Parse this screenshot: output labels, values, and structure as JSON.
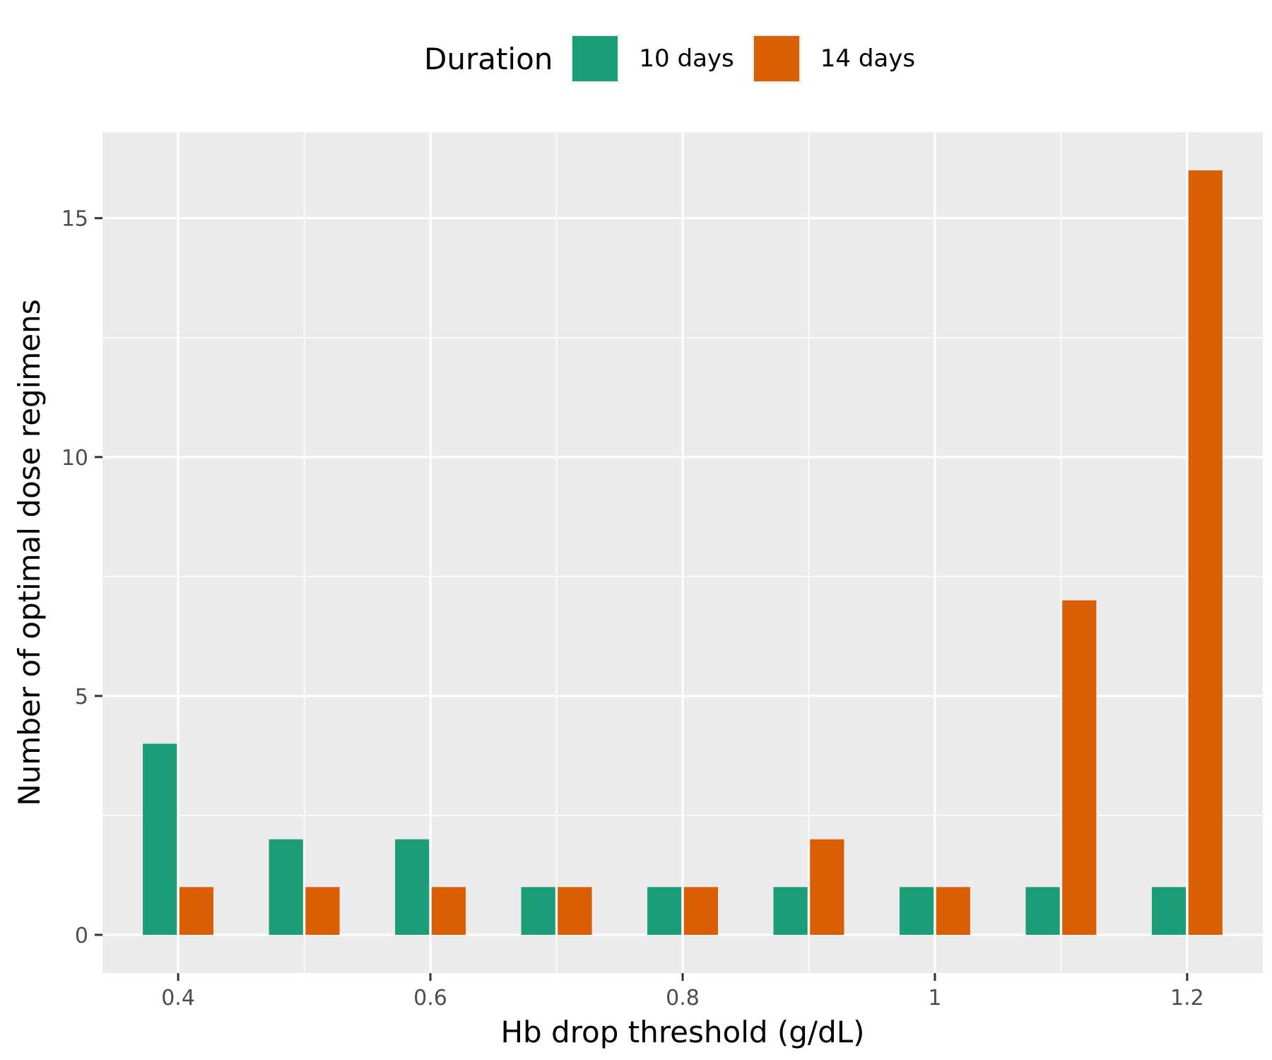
{
  "chart_data": {
    "type": "bar",
    "x": [
      0.4,
      0.5,
      0.6,
      0.7,
      0.8,
      0.9,
      1.0,
      1.1,
      1.2
    ],
    "series": [
      {
        "name": "10 days",
        "color": "#1b9e77",
        "values": [
          4,
          2,
          2,
          1,
          1,
          1,
          1,
          1,
          1
        ]
      },
      {
        "name": "14 days",
        "color": "#d95f02",
        "values": [
          1,
          1,
          1,
          1,
          1,
          2,
          1,
          7,
          16
        ]
      }
    ],
    "xlabel": "Hb drop threshold (g/dL)",
    "ylabel": "Number of optimal dose regimens",
    "xlim": [
      0.34,
      1.26
    ],
    "ylim": [
      -0.8,
      16.8
    ],
    "xticks": [
      0.4,
      0.6,
      0.8,
      1.0,
      1.2
    ],
    "xtick_labels": [
      "0.4",
      "0.6",
      "0.8",
      "1",
      "1.2"
    ],
    "yticks": [
      0,
      5,
      10,
      15
    ],
    "ytick_labels": [
      "0",
      "5",
      "10",
      "15"
    ],
    "legend": {
      "title": "Duration",
      "position": "top"
    },
    "grid": true,
    "panel_background": "#ebebeb"
  }
}
